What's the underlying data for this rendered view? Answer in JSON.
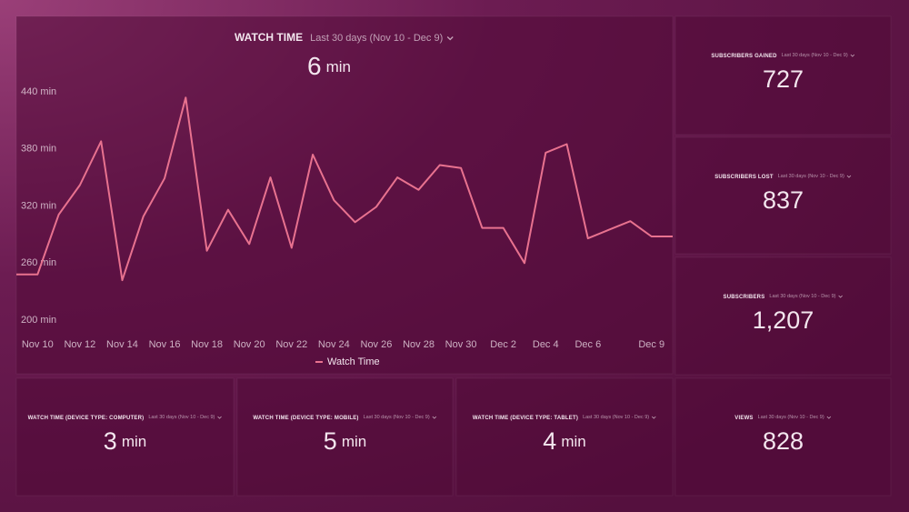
{
  "chart_data": {
    "type": "line",
    "title": "WATCH TIME",
    "subtitle": "Last 30 days (Nov 10 - Dec 9)",
    "summary_value": "6",
    "summary_unit": "min",
    "categories": [
      null,
      "Nov 10",
      null,
      "Nov 12",
      null,
      "Nov 14",
      null,
      "Nov 16",
      null,
      "Nov 18",
      null,
      "Nov 20",
      null,
      "Nov 22",
      null,
      "Nov 24",
      null,
      "Nov 26",
      null,
      "Nov 28",
      null,
      "Nov 30",
      null,
      "Dec 2",
      null,
      "Dec 4",
      null,
      "Dec 6",
      null,
      null,
      "Dec 9",
      null
    ],
    "series": [
      {
        "name": "Watch Time",
        "color": "#e8728f",
        "values": [
          248,
          248,
          311,
          342,
          388,
          242,
          309,
          349,
          434,
          273,
          316,
          280,
          350,
          276,
          374,
          326,
          303,
          319,
          350,
          337,
          363,
          360,
          297,
          297,
          260,
          376,
          385,
          286,
          295,
          304,
          288,
          288
        ]
      }
    ],
    "ylim": [
      200,
      440
    ],
    "yticks": [
      {
        "value": 200,
        "label": "200 min"
      },
      {
        "value": 260,
        "label": "260 min"
      },
      {
        "value": 320,
        "label": "320 min"
      },
      {
        "value": 380,
        "label": "380 min"
      },
      {
        "value": 440,
        "label": "440 min"
      }
    ],
    "legend": "bottom"
  },
  "widgets": [
    {
      "title": "SUBSCRIBERS GAINED",
      "period": "Last 30 days (Nov 10 - Dec 9)",
      "value": "727"
    },
    {
      "title": "SUBSCRIBERS LOST",
      "period": "Last 30 days (Nov 10 - Dec 9)",
      "value": "837"
    },
    {
      "title": "SUBSCRIBERS",
      "period": "Last 30 days (Nov 10 - Dec 9)",
      "value": "1,207"
    },
    {
      "title": "VIEWS",
      "period": "Last 30 days (Nov 10 - Dec 9)",
      "value": "828"
    },
    {
      "title": "WATCH TIME (DEVICE TYPE: COMPUTER)",
      "period": "Last 30 days (Nov 10 - Dec 9)",
      "value": "3",
      "unit": "min"
    },
    {
      "title": "WATCH TIME (DEVICE TYPE: MOBILE)",
      "period": "Last 30 days (Nov 10 - Dec 9)",
      "value": "5",
      "unit": "min"
    },
    {
      "title": "WATCH TIME (DEVICE TYPE: TABLET)",
      "period": "Last 30 days (Nov 10 - Dec 9)",
      "value": "4",
      "unit": "min"
    }
  ]
}
